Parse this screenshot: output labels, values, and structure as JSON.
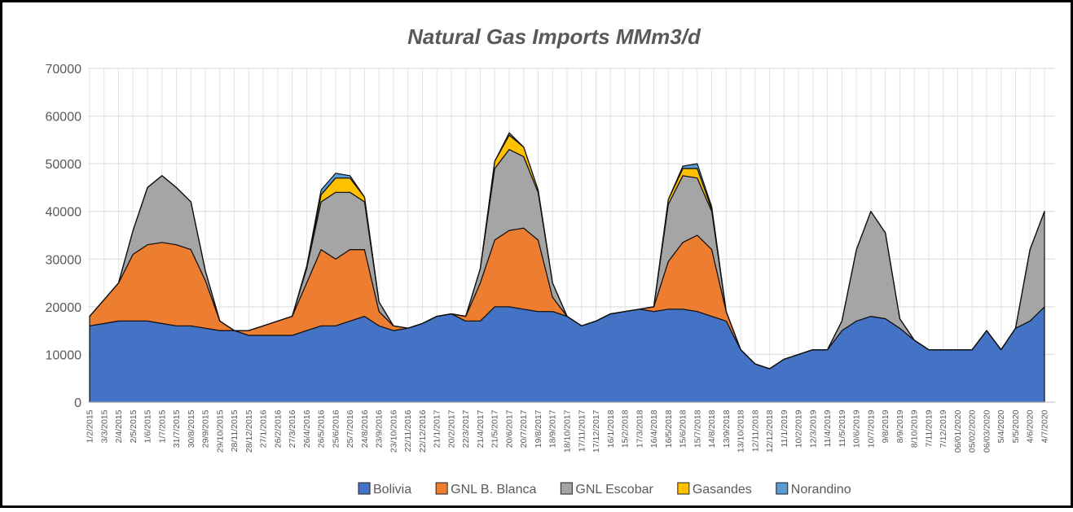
{
  "chart_data": {
    "type": "stacked_area",
    "title": "Natural Gas Imports MMm3/d",
    "categories": [
      "1/2/2015",
      "3/3/2015",
      "2/4/2015",
      "2/5/2015",
      "1/6/2015",
      "1/7/2015",
      "31/7/2015",
      "30/8/2015",
      "29/9/2015",
      "29/10/2015",
      "28/11/2015",
      "28/12/2015",
      "27/1/2016",
      "26/2/2016",
      "27/3/2016",
      "26/4/2016",
      "26/5/2016",
      "25/6/2016",
      "25/7/2016",
      "24/8/2016",
      "23/9/2016",
      "23/10/2016",
      "22/11/2016",
      "22/12/2016",
      "21/1/2017",
      "20/2/2017",
      "22/3/2017",
      "21/4/2017",
      "21/5/2017",
      "20/6/2017",
      "20/7/2017",
      "19/8/2017",
      "18/9/2017",
      "18/10/2017",
      "17/11/2017",
      "17/12/2017",
      "16/1/2018",
      "15/2/2018",
      "17/3/2018",
      "16/4/2018",
      "16/5/2018",
      "15/6/2018",
      "15/7/2018",
      "14/8/2018",
      "13/9/2018",
      "13/10/2018",
      "12/11/2018",
      "12/12/2018",
      "11/1/2019",
      "10/2/2019",
      "12/3/2019",
      "11/4/2019",
      "11/5/2019",
      "10/6/2019",
      "10/7/2019",
      "9/8/2019",
      "8/9/2019",
      "8/10/2019",
      "7/11/2019",
      "7/12/2019",
      "06/01/2020",
      "05/02/2020",
      "06/03/2020",
      "5/4/2020",
      "5/5/2020",
      "4/6/2020",
      "4/7/2020"
    ],
    "series": [
      {
        "name": "Bolivia",
        "color": "#4472c4",
        "values": [
          16000,
          16500,
          17000,
          17000,
          17000,
          16500,
          16000,
          16000,
          15500,
          15000,
          15000,
          14000,
          14000,
          14000,
          14000,
          15000,
          16000,
          16000,
          17000,
          18000,
          16000,
          15000,
          15500,
          16500,
          18000,
          18500,
          17000,
          17000,
          20000,
          20000,
          19500,
          19000,
          19000,
          18000,
          16000,
          17000,
          18500,
          19000,
          19500,
          19000,
          19500,
          19500,
          19000,
          18000,
          17000,
          11000,
          8000,
          7000,
          9000,
          10000,
          11000,
          11000,
          15000,
          17000,
          18000,
          17500,
          15500,
          13000,
          11000,
          11000,
          11000,
          11000,
          15000,
          11000,
          15500,
          17000,
          20000
        ]
      },
      {
        "name": "GNL B. Blanca",
        "color": "#ed7d31",
        "values": [
          2000,
          5000,
          8000,
          14000,
          16000,
          17000,
          17000,
          16000,
          10000,
          2000,
          0,
          1000,
          2000,
          3000,
          4000,
          10000,
          16000,
          14000,
          15000,
          14000,
          3000,
          1000,
          0,
          0,
          0,
          0,
          1000,
          8000,
          14000,
          16000,
          17000,
          15000,
          3000,
          0,
          0,
          0,
          0,
          0,
          0,
          1000,
          10000,
          14000,
          16000,
          14000,
          2000,
          0,
          0,
          0,
          0,
          0,
          0,
          0,
          0,
          0,
          0,
          0,
          0,
          0,
          0,
          0,
          0,
          0,
          0,
          0,
          0,
          0,
          0
        ]
      },
      {
        "name": "GNL Escobar",
        "color": "#a5a5a5",
        "values": [
          0,
          0,
          0,
          5000,
          12000,
          14000,
          12000,
          10000,
          2000,
          0,
          0,
          0,
          0,
          0,
          0,
          3000,
          10000,
          14000,
          12000,
          10000,
          2000,
          0,
          0,
          0,
          0,
          0,
          0,
          3000,
          15000,
          17000,
          15000,
          10000,
          3000,
          0,
          0,
          0,
          0,
          0,
          0,
          0,
          12000,
          14000,
          12000,
          8000,
          0,
          0,
          0,
          0,
          0,
          0,
          0,
          0,
          2000,
          15000,
          22000,
          18000,
          2000,
          0,
          0,
          0,
          0,
          0,
          0,
          0,
          0,
          15000,
          20000
        ]
      },
      {
        "name": "Gasandes",
        "color": "#ffc000",
        "values": [
          0,
          0,
          0,
          0,
          0,
          0,
          0,
          0,
          0,
          0,
          0,
          0,
          0,
          0,
          0,
          0,
          1500,
          3000,
          3000,
          1000,
          0,
          0,
          0,
          0,
          0,
          0,
          0,
          0,
          1500,
          3000,
          2000,
          500,
          0,
          0,
          0,
          0,
          0,
          0,
          0,
          0,
          1000,
          1500,
          2000,
          500,
          0,
          0,
          0,
          0,
          0,
          0,
          0,
          0,
          0,
          0,
          0,
          0,
          0,
          0,
          0,
          0,
          0,
          0,
          0,
          0,
          0,
          0,
          0
        ]
      },
      {
        "name": "Norandino",
        "color": "#5b9bd5",
        "values": [
          0,
          0,
          0,
          0,
          0,
          0,
          0,
          0,
          0,
          0,
          0,
          0,
          0,
          0,
          0,
          500,
          1000,
          1000,
          500,
          0,
          0,
          0,
          0,
          0,
          0,
          0,
          0,
          0,
          0,
          500,
          0,
          0,
          0,
          0,
          0,
          0,
          0,
          0,
          0,
          0,
          0,
          500,
          1000,
          500,
          0,
          0,
          0,
          0,
          0,
          0,
          0,
          0,
          0,
          0,
          0,
          0,
          0,
          0,
          0,
          0,
          0,
          0,
          0,
          0,
          0,
          0,
          0
        ]
      }
    ],
    "ylim": [
      0,
      70000
    ],
    "yticks": [
      0,
      10000,
      20000,
      30000,
      40000,
      50000,
      60000,
      70000
    ],
    "grid": true
  }
}
